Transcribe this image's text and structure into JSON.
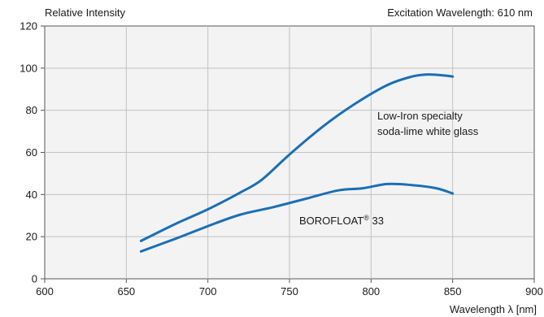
{
  "chart_data": {
    "type": "line",
    "ylabel": "Relative Intensity",
    "xlabel": "Wavelength λ [nm]",
    "subtitle": "Excitation Wavelength: 610 nm",
    "xlim": [
      600,
      900
    ],
    "ylim": [
      0,
      120
    ],
    "xticks": [
      600,
      650,
      700,
      750,
      800,
      850,
      900
    ],
    "yticks": [
      0,
      20,
      40,
      60,
      80,
      100,
      120
    ],
    "grid": true,
    "line_color": "#1a6fb5",
    "plot_background": "#f3f3f3",
    "series": [
      {
        "name": "Low-Iron specialty soda-lime white glass",
        "x": [
          659,
          680,
          700,
          720,
          733,
          750,
          770,
          790,
          810,
          825,
          835,
          845,
          850
        ],
        "y": [
          18,
          26,
          33,
          41,
          47,
          59,
          72,
          83,
          92,
          96,
          97,
          96.5,
          96
        ]
      },
      {
        "name": "BOROFLOAT® 33",
        "x": [
          659,
          680,
          700,
          720,
          740,
          760,
          780,
          795,
          810,
          825,
          840,
          850
        ],
        "y": [
          13,
          19,
          25,
          30.5,
          34,
          38,
          42,
          43,
          45,
          44.5,
          43,
          40.5
        ]
      }
    ],
    "annotations": [
      {
        "line1": "Low-Iron specialty",
        "line2": "soda-lime white glass"
      },
      {
        "main": "BOROFLOAT",
        "sup": "®",
        "rest": " 33"
      }
    ]
  }
}
